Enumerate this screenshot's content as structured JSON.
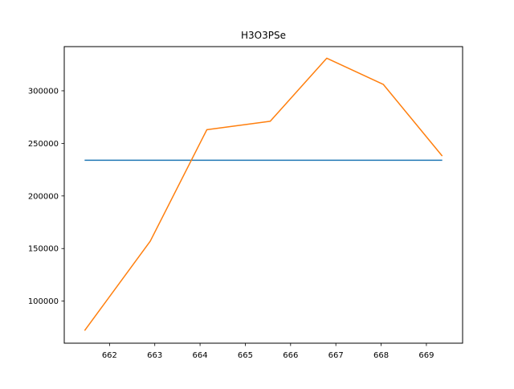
{
  "chart_data": {
    "type": "line",
    "title": "H3O3PSe",
    "xlabel": "",
    "ylabel": "",
    "xlim": [
      661.0,
      669.8
    ],
    "ylim": [
      60000,
      342000
    ],
    "x_ticks": [
      662,
      663,
      664,
      665,
      666,
      667,
      668,
      669
    ],
    "y_ticks": [
      100000,
      150000,
      200000,
      250000,
      300000
    ],
    "grid": false,
    "legend": "none",
    "series": [
      {
        "color": "#1f77b4",
        "x": [
          661.45,
          669.35
        ],
        "y": [
          234000,
          234000
        ]
      },
      {
        "color": "#ff7f0e",
        "x": [
          661.45,
          662.9,
          664.15,
          665.55,
          666.8,
          668.05,
          669.35
        ],
        "y": [
          72000,
          157000,
          263000,
          271000,
          331000,
          306000,
          238000
        ]
      }
    ]
  }
}
